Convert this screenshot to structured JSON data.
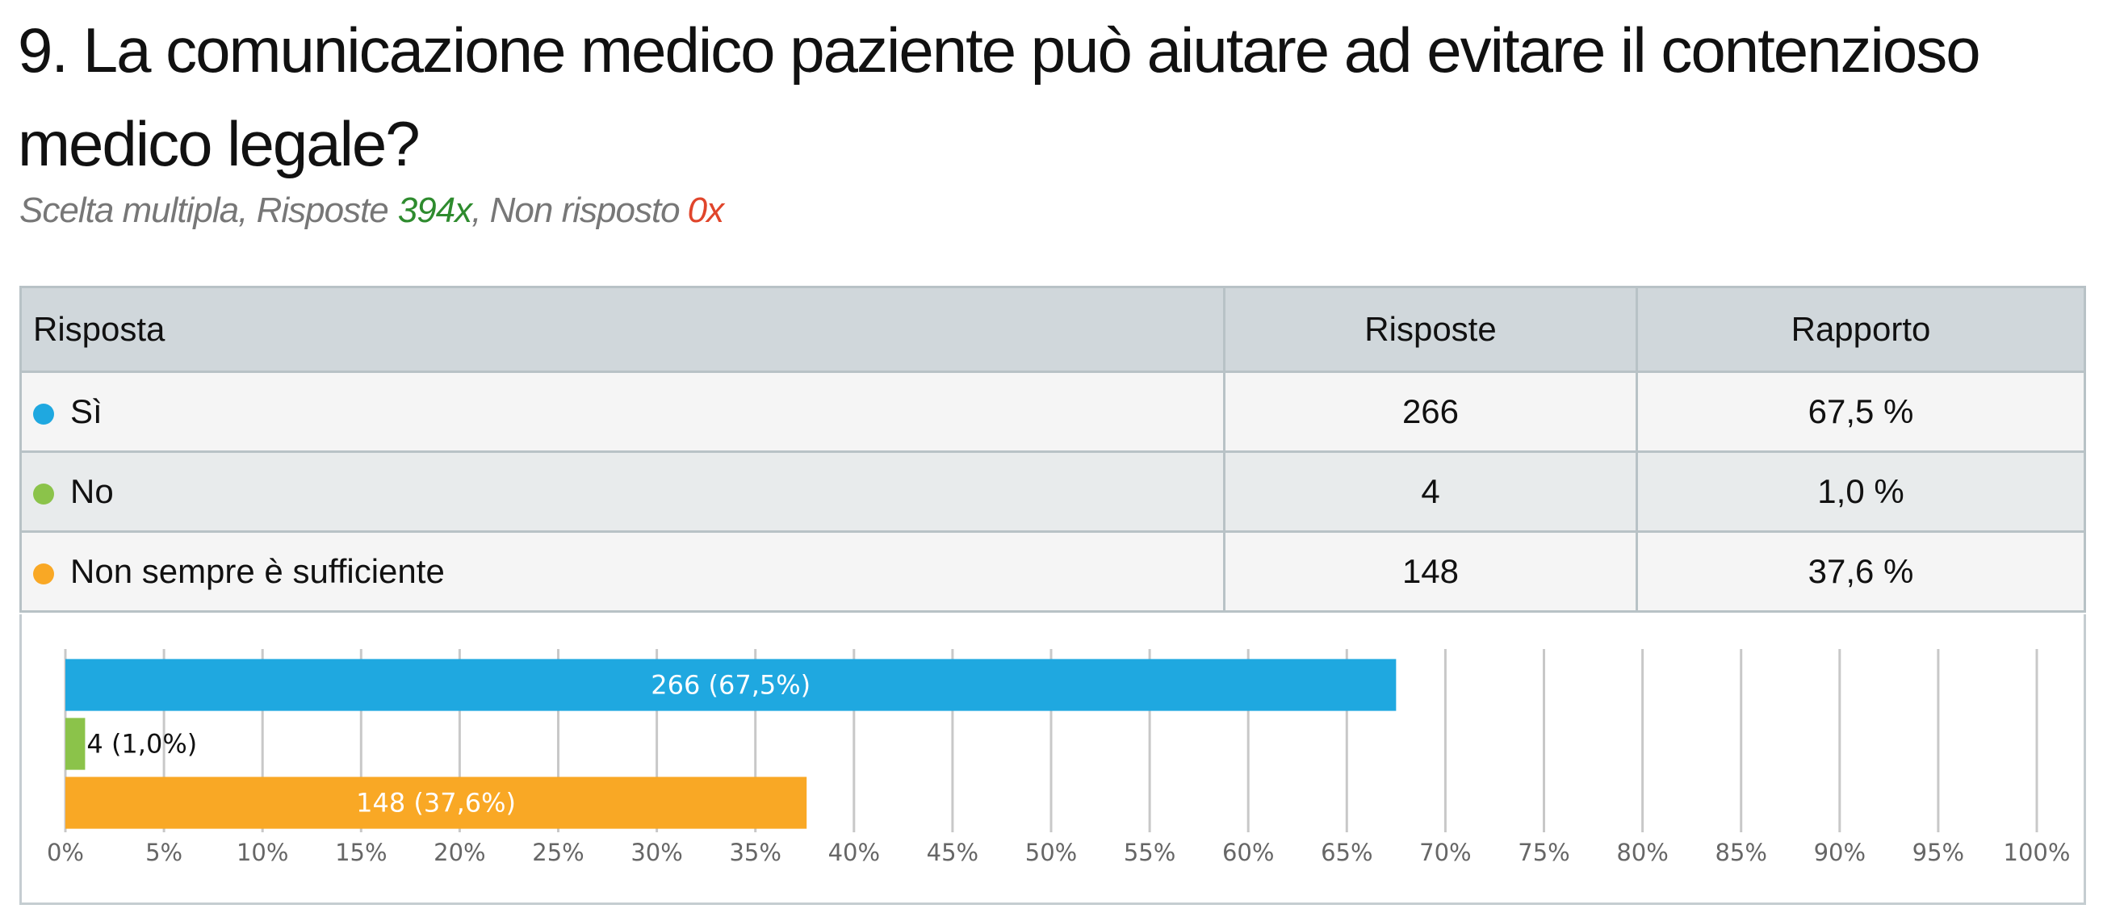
{
  "header": {
    "title": "9. La comunicazione medico paziente può aiutare ad evitare il contenzioso medico legale?",
    "subtitle": {
      "type_label": "Scelta multipla, Risposte",
      "answered": "394x",
      "separator": ", Non risposto",
      "unanswered": "0x"
    }
  },
  "table": {
    "columns": [
      "Risposta",
      "Risposte",
      "Rapporto"
    ],
    "rows": [
      [
        "Sì",
        "266",
        "67,5 %"
      ],
      [
        "No",
        "4",
        "1,0 %"
      ],
      [
        "Non sempre è sufficiente",
        "148",
        "37,6 %"
      ]
    ]
  },
  "chart_data": {
    "type": "bar",
    "orientation": "horizontal",
    "values": [
      67.5,
      1.0,
      37.6
    ],
    "value_labels": [
      "266 (67,5%)",
      "4 (1,0%)",
      "148 (37,6%)"
    ],
    "colors": [
      "#1fa8e0",
      "#8bc34a",
      "#f9a825"
    ],
    "xlim": [
      0,
      100
    ],
    "xticks": [
      {
        "value": 0,
        "label": "0%"
      },
      {
        "value": 5,
        "label": "5%"
      },
      {
        "value": 10,
        "label": "10%"
      },
      {
        "value": 15,
        "label": "15%"
      },
      {
        "value": 20,
        "label": "20%"
      },
      {
        "value": 25,
        "label": "25%"
      },
      {
        "value": 30,
        "label": "30%"
      },
      {
        "value": 35,
        "label": "35%"
      },
      {
        "value": 40,
        "label": "40%"
      },
      {
        "value": 45,
        "label": "45%"
      },
      {
        "value": 50,
        "label": "50%"
      },
      {
        "value": 55,
        "label": "55%"
      },
      {
        "value": 60,
        "label": "60%"
      },
      {
        "value": 65,
        "label": "65%"
      },
      {
        "value": 70,
        "label": "70%"
      },
      {
        "value": 75,
        "label": "75%"
      },
      {
        "value": 80,
        "label": "80%"
      },
      {
        "value": 85,
        "label": "85%"
      },
      {
        "value": 90,
        "label": "90%"
      },
      {
        "value": 95,
        "label": "95%"
      },
      {
        "value": 100,
        "label": "100%"
      }
    ],
    "grid": true
  }
}
